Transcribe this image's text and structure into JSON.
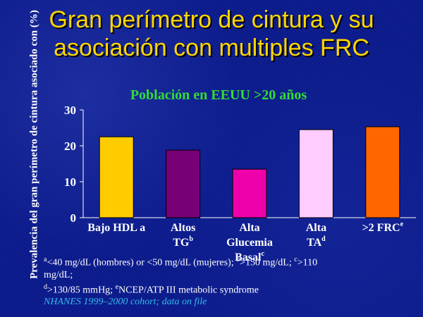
{
  "title_line1": "Gran perímetro de cintura y su",
  "title_line2": "asociación con multiples FRC",
  "footnotes": {
    "line1_a": "<40 mg/dL (hombres) or <50 mg/dL (mujeres); ",
    "line1_b": ">150 mg/dL; ",
    "line1_c": ">110",
    "line2": "mg/dL;",
    "line3_d": ">130/85 mmHg; ",
    "line3_e": "NCEP/ATP III metabolic syndrome",
    "sup_a": "a",
    "sup_b": "b",
    "sup_c": "c",
    "sup_d": "d",
    "sup_e": "e",
    "source": "NHANES 1999–2000 cohort; data on file"
  },
  "chart_data": {
    "type": "bar",
    "title": "Población en EEUU >20 años",
    "ylabel": "Prevalencia del gran perímetro de cintura asociado con (%)",
    "ylim": [
      0,
      30
    ],
    "yticks": [
      "0",
      "10",
      "20",
      "30"
    ],
    "grid": false,
    "categories": [
      {
        "lines": [
          "Bajo HDL a"
        ],
        "sup": ""
      },
      {
        "lines": [
          "Altos",
          "TG"
        ],
        "sup": "b"
      },
      {
        "lines": [
          "Alta",
          "Glucemia",
          "Basal"
        ],
        "sup": "c"
      },
      {
        "lines": [
          "Alta",
          "TA"
        ],
        "sup": "d"
      },
      {
        "lines": [
          ">2 FRC"
        ],
        "sup": "e"
      }
    ],
    "values": [
      22.5,
      18.8,
      13.5,
      24.5,
      25.3
    ],
    "colors": [
      "#ffcc00",
      "#770077",
      "#ee00aa",
      "#ffccff",
      "#ff6600"
    ]
  }
}
